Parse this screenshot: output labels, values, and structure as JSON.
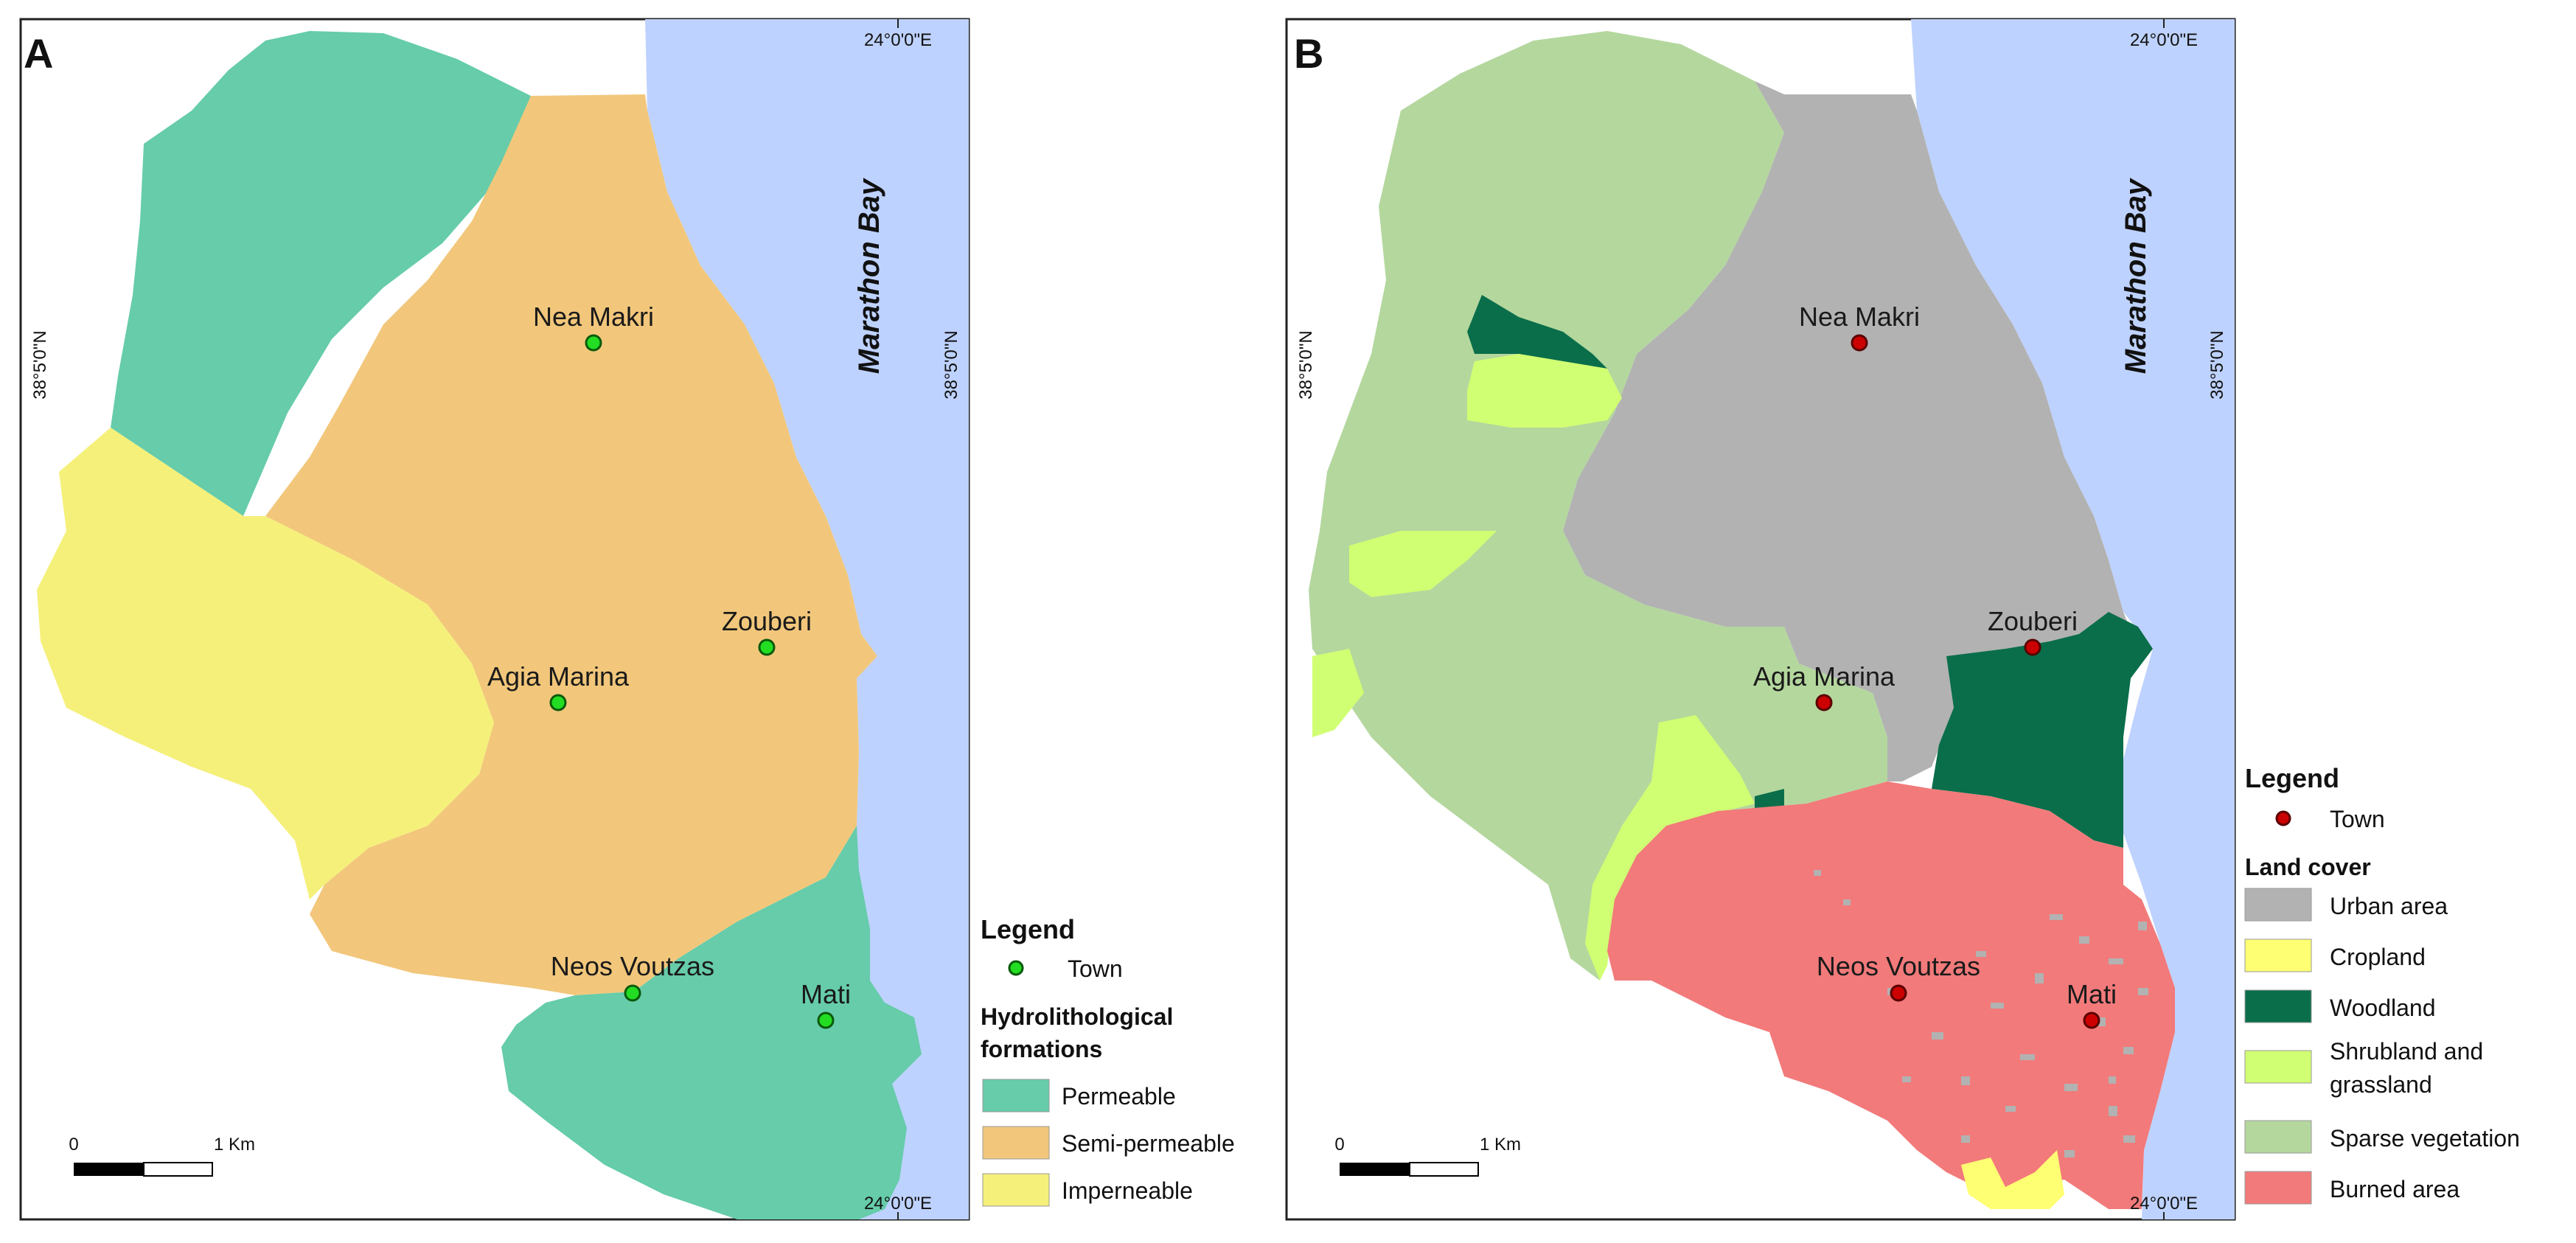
{
  "maps": [
    {
      "panel": "A",
      "bay_label": "Marathon Bay",
      "lon_label_top": "24°0'0\"E",
      "lon_label_bottom": "24°0'0\"E",
      "lat_label_left": "38°5'0\"N",
      "lat_label_right": "38°5'0\"N",
      "scale_zero": "0",
      "scale_one": "1 Km",
      "towns": [
        "Nea Makri",
        "Zouberi",
        "Agia Marina",
        "Neos Voutzas",
        "Mati"
      ],
      "legend": {
        "title": "Legend",
        "town_label": "Town",
        "town_color": "#22dd22",
        "section_title_line1": "Hydrolithological",
        "section_title_line2": "formations",
        "items": [
          {
            "label": "Permeable",
            "color": "#66ccaa"
          },
          {
            "label": "Semi-permeable",
            "color": "#f2c77b"
          },
          {
            "label": "Imperneable",
            "color": "#f5f07a"
          }
        ]
      }
    },
    {
      "panel": "B",
      "bay_label": "Marathon Bay",
      "lon_label_top": "24°0'0\"E",
      "lon_label_bottom": "24°0'0\"E",
      "lat_label_left": "38°5'0\"N",
      "lat_label_right": "38°5'0\"N",
      "scale_zero": "0",
      "scale_one": "1 Km",
      "towns": [
        "Nea Makri",
        "Zouberi",
        "Agia Marina",
        "Neos Voutzas",
        "Mati"
      ],
      "legend": {
        "title": "Legend",
        "town_label": "Town",
        "town_color": "#cc0000",
        "section_title": "Land cover",
        "items": [
          {
            "label": "Urban area",
            "color": "#b2b2b2"
          },
          {
            "label": "Cropland",
            "color": "#ffff73"
          },
          {
            "label": "Woodland",
            "color": "#0a6e4a"
          },
          {
            "label_line1": "Shrubland and",
            "label_line2": "grassland",
            "color": "#d1ff73"
          },
          {
            "label": "Sparse vegetation",
            "color": "#b4d79e"
          },
          {
            "label": "Burned area",
            "color": "#f27a7a"
          }
        ]
      }
    }
  ],
  "colors": {
    "water": "#bed2ff",
    "frame": "#222222"
  }
}
